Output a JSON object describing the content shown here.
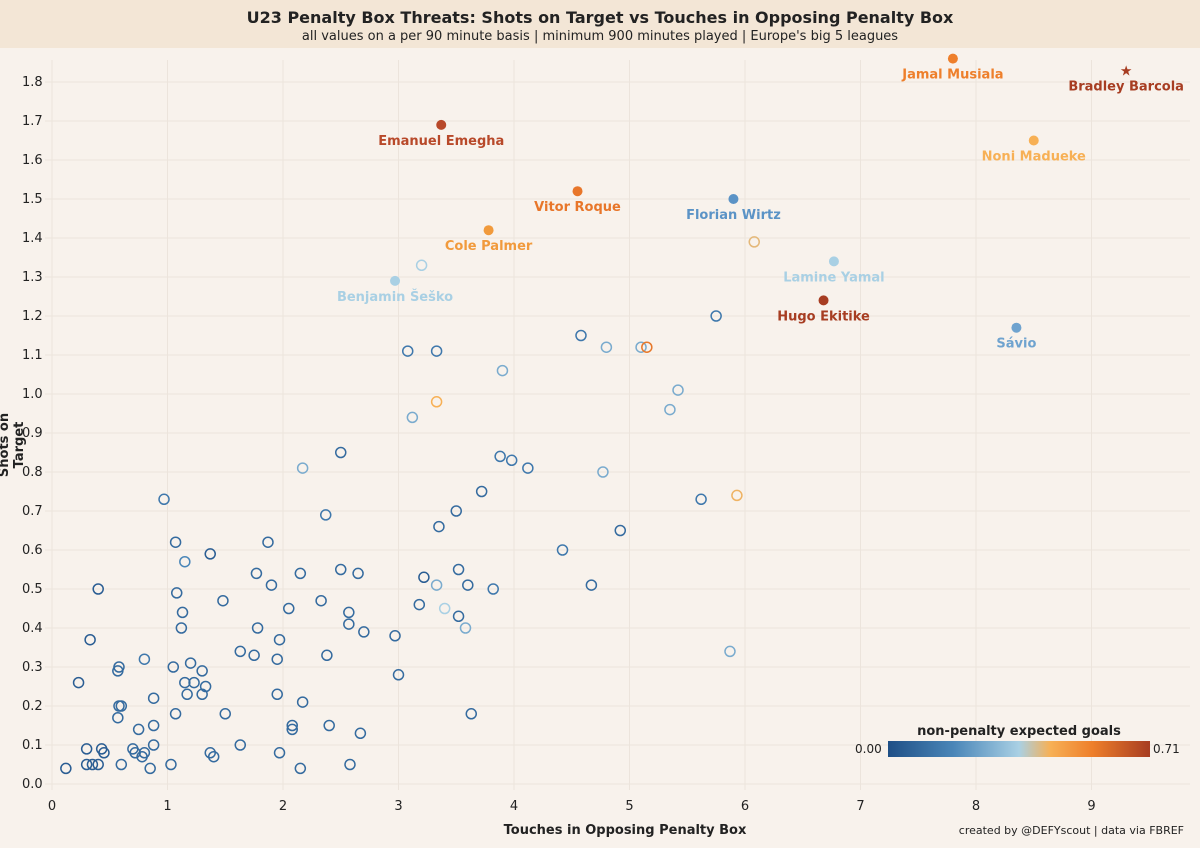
{
  "chart_data": {
    "type": "scatter",
    "title": "U23 Penalty Box Threats: Shots on Target vs Touches in Opposing Penalty Box",
    "subtitle": "all values on a per 90 minute basis | minimum 900 minutes played | Europe's big 5 leagues",
    "xlabel": "Touches in Opposing Penalty Box",
    "ylabel": "Shots on Target",
    "xlim": [
      0,
      9.5
    ],
    "ylim": [
      0,
      1.9
    ],
    "xticks": [
      "0",
      "1",
      "2",
      "3",
      "4",
      "5",
      "6",
      "7",
      "8",
      "9"
    ],
    "yticks": [
      "0.0",
      "0.1",
      "0.2",
      "0.3",
      "0.4",
      "0.5",
      "0.6",
      "0.7",
      "0.8",
      "0.9",
      "1.0",
      "1.1",
      "1.2",
      "1.3",
      "1.4",
      "1.5",
      "1.6",
      "1.7",
      "1.8"
    ],
    "color_scale": {
      "title": "non-penalty expected goals",
      "min_label": "0.00",
      "max_label": "0.71",
      "colors": [
        "#1f4f86",
        "#4a86b8",
        "#a9d0e4",
        "#f7b055",
        "#ee7f2b",
        "#a73d22"
      ]
    },
    "highlighted": [
      {
        "name": "Jamal Musiala",
        "x": 7.8,
        "y": 1.86,
        "color": "#ee7f2b"
      },
      {
        "name": "Bradley Barcola",
        "x": 9.3,
        "y": 1.83,
        "color": "#a73d22",
        "marker": "star"
      },
      {
        "name": "Emanuel Emegha",
        "x": 3.37,
        "y": 1.69,
        "color": "#b8492a"
      },
      {
        "name": "Noni Madueke",
        "x": 8.5,
        "y": 1.65,
        "color": "#f7b055"
      },
      {
        "name": "Vitor Roque",
        "x": 4.55,
        "y": 1.52,
        "color": "#e8762a"
      },
      {
        "name": "Florian Wirtz",
        "x": 5.9,
        "y": 1.5,
        "color": "#5b93c6"
      },
      {
        "name": "Cole Palmer",
        "x": 3.78,
        "y": 1.42,
        "color": "#f19a3c"
      },
      {
        "name": "Lamine Yamal",
        "x": 6.77,
        "y": 1.34,
        "color": "#a9d0e4"
      },
      {
        "name": "Benjamin Šeško",
        "x": 2.97,
        "y": 1.29,
        "color": "#a9d0e4"
      },
      {
        "name": "Hugo Ekitike",
        "x": 6.68,
        "y": 1.24,
        "color": "#a73d22"
      },
      {
        "name": "Sávio",
        "x": 8.35,
        "y": 1.17,
        "color": "#6fa3cf"
      }
    ],
    "others": [
      {
        "x": 6.08,
        "y": 1.39,
        "c": 0.55
      },
      {
        "x": 3.2,
        "y": 1.33,
        "c": 0.4
      },
      {
        "x": 5.75,
        "y": 1.2,
        "c": 0.15
      },
      {
        "x": 4.58,
        "y": 1.15,
        "c": 0.15
      },
      {
        "x": 3.08,
        "y": 1.11,
        "c": 0.15
      },
      {
        "x": 3.33,
        "y": 1.11,
        "c": 0.15
      },
      {
        "x": 4.8,
        "y": 1.12,
        "c": 0.3
      },
      {
        "x": 5.1,
        "y": 1.12,
        "c": 0.3
      },
      {
        "x": 5.15,
        "y": 1.12,
        "c": 0.82
      },
      {
        "x": 3.9,
        "y": 1.06,
        "c": 0.3
      },
      {
        "x": 5.42,
        "y": 1.01,
        "c": 0.3
      },
      {
        "x": 5.35,
        "y": 0.96,
        "c": 0.3
      },
      {
        "x": 3.33,
        "y": 0.98,
        "c": 0.6
      },
      {
        "x": 3.12,
        "y": 0.94,
        "c": 0.3
      },
      {
        "x": 3.88,
        "y": 0.84,
        "c": 0.15
      },
      {
        "x": 3.98,
        "y": 0.83,
        "c": 0.15
      },
      {
        "x": 4.12,
        "y": 0.81,
        "c": 0.15
      },
      {
        "x": 2.5,
        "y": 0.85,
        "c": 0.1
      },
      {
        "x": 2.17,
        "y": 0.81,
        "c": 0.3
      },
      {
        "x": 4.77,
        "y": 0.8,
        "c": 0.3
      },
      {
        "x": 3.72,
        "y": 0.75,
        "c": 0.1
      },
      {
        "x": 5.62,
        "y": 0.73,
        "c": 0.15
      },
      {
        "x": 5.93,
        "y": 0.74,
        "c": 0.58
      },
      {
        "x": 3.5,
        "y": 0.7,
        "c": 0.1
      },
      {
        "x": 2.37,
        "y": 0.69,
        "c": 0.15
      },
      {
        "x": 3.35,
        "y": 0.66,
        "c": 0.1
      },
      {
        "x": 4.92,
        "y": 0.65,
        "c": 0.1
      },
      {
        "x": 4.42,
        "y": 0.6,
        "c": 0.15
      },
      {
        "x": 1.87,
        "y": 0.62,
        "c": 0.1
      },
      {
        "x": 3.52,
        "y": 0.55,
        "c": 0.1
      },
      {
        "x": 3.22,
        "y": 0.53,
        "c": 0.05
      },
      {
        "x": 3.33,
        "y": 0.51,
        "c": 0.3
      },
      {
        "x": 3.6,
        "y": 0.51,
        "c": 0.1
      },
      {
        "x": 3.82,
        "y": 0.5,
        "c": 0.15
      },
      {
        "x": 4.67,
        "y": 0.51,
        "c": 0.1
      },
      {
        "x": 3.18,
        "y": 0.46,
        "c": 0.1
      },
      {
        "x": 3.4,
        "y": 0.45,
        "c": 0.4
      },
      {
        "x": 3.52,
        "y": 0.43,
        "c": 0.1
      },
      {
        "x": 3.58,
        "y": 0.4,
        "c": 0.3
      },
      {
        "x": 5.87,
        "y": 0.34,
        "c": 0.3
      },
      {
        "x": 3.63,
        "y": 0.18,
        "c": 0.1
      },
      {
        "x": 2.97,
        "y": 0.38,
        "c": 0.1
      },
      {
        "x": 3.0,
        "y": 0.28,
        "c": 0.1
      },
      {
        "x": 0.97,
        "y": 0.73,
        "c": 0.15
      },
      {
        "x": 1.07,
        "y": 0.62,
        "c": 0.1
      },
      {
        "x": 1.15,
        "y": 0.57,
        "c": 0.2
      },
      {
        "x": 1.37,
        "y": 0.59,
        "c": 0.05
      },
      {
        "x": 0.4,
        "y": 0.5,
        "c": 0.05
      },
      {
        "x": 1.08,
        "y": 0.49,
        "c": 0.1
      },
      {
        "x": 1.48,
        "y": 0.47,
        "c": 0.1
      },
      {
        "x": 1.77,
        "y": 0.54,
        "c": 0.1
      },
      {
        "x": 1.9,
        "y": 0.51,
        "c": 0.1
      },
      {
        "x": 2.15,
        "y": 0.54,
        "c": 0.1
      },
      {
        "x": 2.5,
        "y": 0.55,
        "c": 0.1
      },
      {
        "x": 2.65,
        "y": 0.54,
        "c": 0.1
      },
      {
        "x": 2.33,
        "y": 0.47,
        "c": 0.1
      },
      {
        "x": 2.05,
        "y": 0.45,
        "c": 0.1
      },
      {
        "x": 2.57,
        "y": 0.44,
        "c": 0.1
      },
      {
        "x": 2.57,
        "y": 0.41,
        "c": 0.1
      },
      {
        "x": 2.7,
        "y": 0.39,
        "c": 0.1
      },
      {
        "x": 1.13,
        "y": 0.44,
        "c": 0.1
      },
      {
        "x": 1.12,
        "y": 0.4,
        "c": 0.1
      },
      {
        "x": 1.78,
        "y": 0.4,
        "c": 0.1
      },
      {
        "x": 1.97,
        "y": 0.37,
        "c": 0.1
      },
      {
        "x": 1.63,
        "y": 0.34,
        "c": 0.1
      },
      {
        "x": 1.75,
        "y": 0.33,
        "c": 0.1
      },
      {
        "x": 1.95,
        "y": 0.32,
        "c": 0.1
      },
      {
        "x": 2.38,
        "y": 0.33,
        "c": 0.1
      },
      {
        "x": 0.33,
        "y": 0.37,
        "c": 0.05
      },
      {
        "x": 0.57,
        "y": 0.29,
        "c": 0.1
      },
      {
        "x": 0.58,
        "y": 0.3,
        "c": 0.1
      },
      {
        "x": 0.8,
        "y": 0.32,
        "c": 0.15
      },
      {
        "x": 1.05,
        "y": 0.3,
        "c": 0.1
      },
      {
        "x": 1.2,
        "y": 0.31,
        "c": 0.1
      },
      {
        "x": 1.3,
        "y": 0.29,
        "c": 0.1
      },
      {
        "x": 1.15,
        "y": 0.26,
        "c": 0.1
      },
      {
        "x": 1.23,
        "y": 0.26,
        "c": 0.1
      },
      {
        "x": 1.33,
        "y": 0.25,
        "c": 0.1
      },
      {
        "x": 1.17,
        "y": 0.23,
        "c": 0.1
      },
      {
        "x": 1.3,
        "y": 0.23,
        "c": 0.1
      },
      {
        "x": 0.23,
        "y": 0.26,
        "c": 0.05
      },
      {
        "x": 0.58,
        "y": 0.2,
        "c": 0.1
      },
      {
        "x": 0.6,
        "y": 0.2,
        "c": 0.1
      },
      {
        "x": 0.88,
        "y": 0.22,
        "c": 0.1
      },
      {
        "x": 1.07,
        "y": 0.18,
        "c": 0.1
      },
      {
        "x": 1.5,
        "y": 0.18,
        "c": 0.1
      },
      {
        "x": 1.95,
        "y": 0.23,
        "c": 0.1
      },
      {
        "x": 2.17,
        "y": 0.21,
        "c": 0.1
      },
      {
        "x": 0.57,
        "y": 0.17,
        "c": 0.1
      },
      {
        "x": 0.75,
        "y": 0.14,
        "c": 0.1
      },
      {
        "x": 0.88,
        "y": 0.15,
        "c": 0.1
      },
      {
        "x": 2.08,
        "y": 0.15,
        "c": 0.1
      },
      {
        "x": 2.08,
        "y": 0.14,
        "c": 0.1
      },
      {
        "x": 2.4,
        "y": 0.15,
        "c": 0.1
      },
      {
        "x": 2.67,
        "y": 0.13,
        "c": 0.1
      },
      {
        "x": 0.3,
        "y": 0.09,
        "c": 0.05
      },
      {
        "x": 0.43,
        "y": 0.09,
        "c": 0.05
      },
      {
        "x": 0.45,
        "y": 0.08,
        "c": 0.05
      },
      {
        "x": 0.7,
        "y": 0.09,
        "c": 0.1
      },
      {
        "x": 0.72,
        "y": 0.08,
        "c": 0.1
      },
      {
        "x": 0.8,
        "y": 0.08,
        "c": 0.1
      },
      {
        "x": 0.88,
        "y": 0.1,
        "c": 0.1
      },
      {
        "x": 0.78,
        "y": 0.07,
        "c": 0.1
      },
      {
        "x": 1.37,
        "y": 0.08,
        "c": 0.1
      },
      {
        "x": 1.4,
        "y": 0.07,
        "c": 0.1
      },
      {
        "x": 1.63,
        "y": 0.1,
        "c": 0.1
      },
      {
        "x": 1.97,
        "y": 0.08,
        "c": 0.1
      },
      {
        "x": 0.12,
        "y": 0.04,
        "c": 0.05
      },
      {
        "x": 0.3,
        "y": 0.05,
        "c": 0.05
      },
      {
        "x": 0.35,
        "y": 0.05,
        "c": 0.05
      },
      {
        "x": 0.4,
        "y": 0.05,
        "c": 0.05
      },
      {
        "x": 0.6,
        "y": 0.05,
        "c": 0.1
      },
      {
        "x": 0.85,
        "y": 0.04,
        "c": 0.1
      },
      {
        "x": 1.03,
        "y": 0.05,
        "c": 0.1
      },
      {
        "x": 2.15,
        "y": 0.04,
        "c": 0.1
      },
      {
        "x": 2.58,
        "y": 0.05,
        "c": 0.1
      }
    ]
  },
  "credit": "created by @DEFYscout | data via FBREF"
}
